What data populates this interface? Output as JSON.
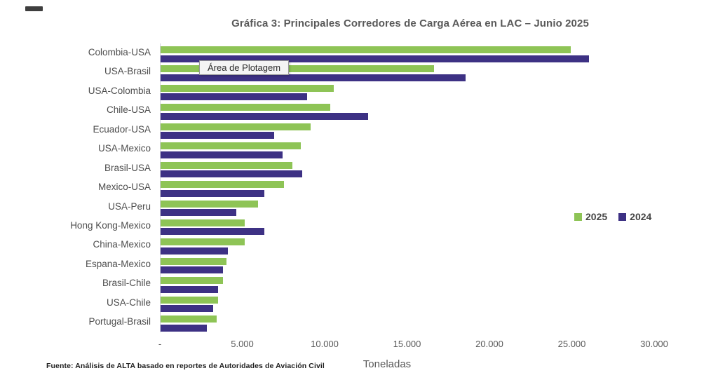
{
  "page": {
    "footer_source": "Fuente: Análisis de ALTA basado en reportes de Autoridades de Aviación Civil",
    "plot_area_tooltip": "Área de Plotagem"
  },
  "colors": {
    "series_2025": "#8ec456",
    "series_2024": "#3d3184",
    "title_text": "#595959",
    "axis_text": "#595959"
  },
  "chart_data": {
    "type": "bar",
    "orientation": "horizontal",
    "title": "Gráfica 3: Principales Corredores de Carga Aérea en LAC – Junio 2025",
    "xlabel": "Toneladas",
    "categories": [
      "Colombia-USA",
      "USA-Brasil",
      "USA-Colombia",
      "Chile-USA",
      "Ecuador-USA",
      "USA-Mexico",
      "Brasil-USA",
      "Mexico-USA",
      "USA-Peru",
      "Hong Kong-Mexico",
      "China-Mexico",
      "Espana-Mexico",
      "Brasil-Chile",
      "USA-Chile",
      "Portugal-Brasil"
    ],
    "series": [
      {
        "name": "2025",
        "color": "#8ec456",
        "values": [
          24900,
          16600,
          10500,
          10300,
          9100,
          8500,
          8000,
          7500,
          5900,
          5100,
          5100,
          4000,
          3800,
          3500,
          3400
        ]
      },
      {
        "name": "2024",
        "color": "#3d3184",
        "values": [
          26000,
          18500,
          8900,
          12600,
          6900,
          7400,
          8600,
          6300,
          4600,
          6300,
          4100,
          3800,
          3500,
          3200,
          2800
        ]
      }
    ],
    "xlim": [
      0,
      30000
    ],
    "xticks": {
      "values": [
        0,
        5000,
        10000,
        15000,
        20000,
        25000,
        30000
      ],
      "labels": [
        "-",
        "5.000",
        "10.000",
        "15.000",
        "20.000",
        "25.000",
        "30.000"
      ]
    },
    "legend": {
      "position": "middle-right",
      "entries": [
        "2025",
        "2024"
      ]
    },
    "grid": false
  }
}
